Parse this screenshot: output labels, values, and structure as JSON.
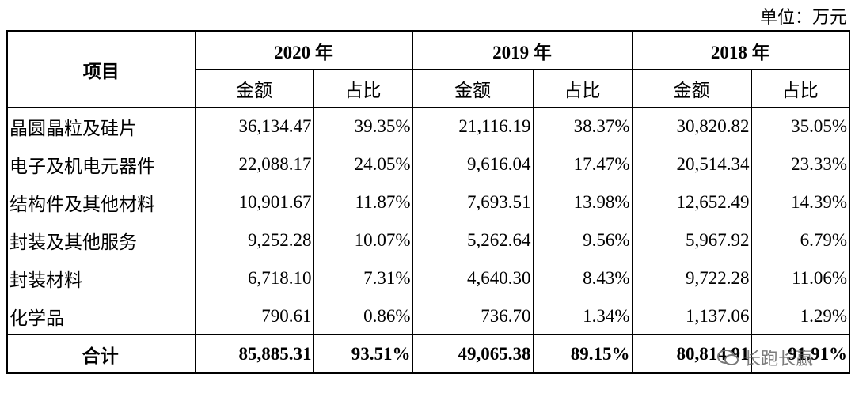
{
  "unit": "单位：万元",
  "table": {
    "header": {
      "item": "项目",
      "years": [
        "2020 年",
        "2019 年",
        "2018 年"
      ],
      "sub": [
        "金额",
        "占比",
        "金额",
        "占比",
        "金额",
        "占比"
      ]
    },
    "rows": [
      [
        "晶圆晶粒及硅片",
        "36,134.47",
        "39.35%",
        "21,116.19",
        "38.37%",
        "30,820.82",
        "35.05%"
      ],
      [
        "电子及机电元器件",
        "22,088.17",
        "24.05%",
        "9,616.04",
        "17.47%",
        "20,514.34",
        "23.33%"
      ],
      [
        "结构件及其他材料",
        "10,901.67",
        "11.87%",
        "7,693.51",
        "13.98%",
        "12,652.49",
        "14.39%"
      ],
      [
        "封装及其他服务",
        "9,252.28",
        "10.07%",
        "5,262.64",
        "9.56%",
        "5,967.92",
        "6.79%"
      ],
      [
        "封装材料",
        "6,718.10",
        "7.31%",
        "4,640.30",
        "8.43%",
        "9,722.28",
        "11.06%"
      ],
      [
        "化学品",
        "790.61",
        "0.86%",
        "736.70",
        "1.34%",
        "1,137.06",
        "1.29%"
      ],
      [
        "合计",
        "85,885.31",
        "93.51%",
        "49,065.38",
        "89.15%",
        "80,814.91",
        "91.91%"
      ]
    ]
  },
  "watermark": "长跑长赢"
}
